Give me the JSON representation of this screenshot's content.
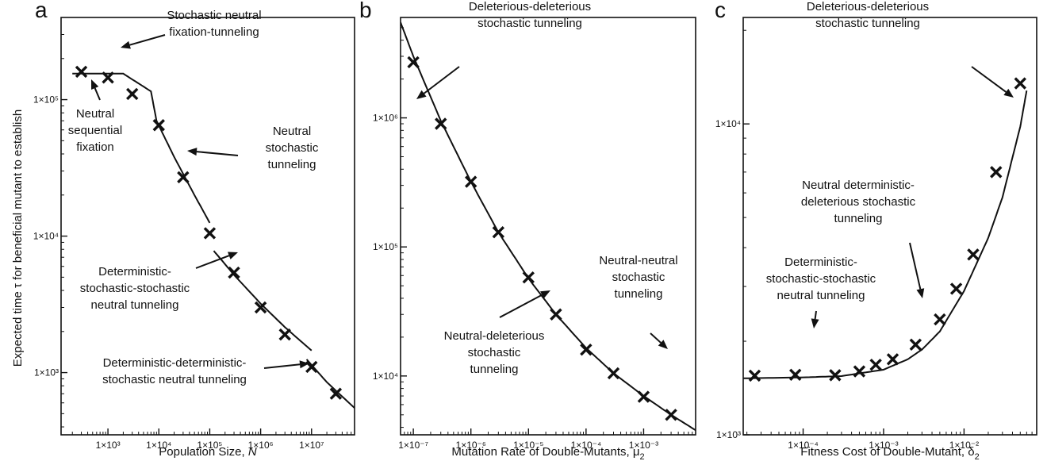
{
  "y_axis_label": "Expected time τ for beneficial mutant to establish",
  "chart_data": [
    {
      "panel": "a",
      "type": "line",
      "xlabel": "Population Size, N",
      "xscale": "log",
      "yscale": "log",
      "xlim": [
        120,
        70000000
      ],
      "ylim": [
        350,
        400000
      ],
      "xticks": [
        1000,
        10000,
        100000,
        1000000,
        10000000
      ],
      "xtick_labels": [
        "1×10³",
        "1×10⁴",
        "1×10⁵",
        "1×10⁶",
        "1×10⁷"
      ],
      "yticks": [
        1000,
        10000,
        100000
      ],
      "ytick_labels": [
        "1×10³",
        "1×10⁴",
        "1×10⁵"
      ],
      "markers": {
        "name": "simulation",
        "x": [
          300,
          1000,
          3000,
          10000,
          30000,
          100000,
          300000,
          1000000,
          3000000,
          10000000,
          30000000
        ],
        "y": [
          160000,
          145000,
          110000,
          65000,
          27000,
          10500,
          5400,
          3000,
          1900,
          1100,
          700
        ]
      },
      "curves": [
        {
          "name": "sequential-fixation",
          "x": [
            200,
            2000,
            7000,
            9000,
            20000,
            50000,
            100000
          ],
          "y": [
            155000,
            155000,
            115000,
            70000,
            38000,
            20000,
            12500
          ]
        },
        {
          "name": "deterministic-stochastic",
          "x": [
            120000,
            300000,
            1000000,
            3000000,
            10000000
          ],
          "y": [
            7800,
            5200,
            3200,
            2150,
            1450
          ]
        },
        {
          "name": "deterministic-deterministic",
          "x": [
            8000000,
            20000000,
            70000000
          ],
          "y": [
            1250,
            850,
            550
          ]
        }
      ],
      "annotations": [
        {
          "lines": [
            "Stochastic neutral",
            "fixation-tunneling"
          ]
        },
        {
          "lines": [
            "Neutral",
            "sequential",
            "fixation"
          ]
        },
        {
          "lines": [
            "Neutral",
            "stochastic",
            "tunneling"
          ]
        },
        {
          "lines": [
            "Deterministic-",
            "stochastic-stochastic",
            "neutral tunneling"
          ]
        },
        {
          "lines": [
            "Deterministic-deterministic-",
            "stochastic neutral tunneling"
          ]
        }
      ]
    },
    {
      "panel": "b",
      "type": "line",
      "xlabel": "Mutation Rate of Double-Mutants, μ2",
      "xscale": "log",
      "yscale": "log",
      "xlim": [
        6e-08,
        0.008
      ],
      "ylim": [
        3500,
        6000000
      ],
      "xticks": [
        1e-07,
        1e-06,
        1e-05,
        0.0001,
        0.001
      ],
      "xtick_labels": [
        "1×10⁻⁷",
        "1×10⁻⁶",
        "1×10⁻⁵",
        "1×10⁻⁴",
        "1×10⁻³"
      ],
      "yticks": [
        10000,
        100000,
        1000000
      ],
      "ytick_labels": [
        "1×10⁴",
        "1×10⁵",
        "1×10⁶"
      ],
      "markers": {
        "name": "simulation",
        "x": [
          1e-07,
          3e-07,
          1e-06,
          3e-06,
          1e-05,
          3e-05,
          0.0001,
          0.0003,
          0.001,
          0.003
        ],
        "y": [
          2700000,
          900000,
          320000,
          130000,
          58000,
          30000,
          16000,
          10500,
          6900,
          5000
        ]
      },
      "curves": [
        {
          "name": "theory",
          "x": [
            6e-08,
            1e-07,
            3e-07,
            1e-06,
            3e-06,
            1e-05,
            3e-05,
            0.0001,
            0.0003,
            0.001,
            0.003,
            0.008
          ],
          "y": [
            5500000,
            3000000,
            950000,
            320000,
            130000,
            57000,
            30000,
            16500,
            10500,
            7000,
            5000,
            3800
          ]
        }
      ],
      "annotations": [
        {
          "lines": [
            "Deleterious-deleterious",
            "stochastic tunneling"
          ]
        },
        {
          "lines": [
            "Neutral-neutral",
            "stochastic",
            "tunneling"
          ]
        },
        {
          "lines": [
            "Neutral-deleterious",
            "stochastic",
            "tunneling"
          ]
        }
      ]
    },
    {
      "panel": "c",
      "type": "line",
      "xlabel": "Fitness Cost of Double-Mutant, δ2",
      "xscale": "log",
      "yscale": "log",
      "xlim": [
        1.8e-05,
        0.08
      ],
      "ylim": [
        1000,
        22000
      ],
      "xticks": [
        0.0001,
        0.001,
        0.01
      ],
      "xtick_labels": [
        "1×10⁻⁴",
        "1×10⁻³",
        "1×10⁻²"
      ],
      "yticks": [
        1000,
        10000
      ],
      "ytick_labels": [
        "1×10³",
        "1×10⁴"
      ],
      "markers": {
        "name": "simulation",
        "x": [
          2.5e-05,
          8e-05,
          0.00025,
          0.0005,
          0.0008,
          0.0013,
          0.0025,
          0.005,
          0.008,
          0.013,
          0.025,
          0.05
        ],
        "y": [
          1550,
          1560,
          1555,
          1600,
          1680,
          1750,
          1950,
          2350,
          2950,
          3800,
          7000,
          13500
        ]
      },
      "curves": [
        {
          "name": "theory",
          "x": [
            1.8e-05,
            0.0001,
            0.0003,
            0.001,
            0.002,
            0.003,
            0.005,
            0.01,
            0.02,
            0.03,
            0.05,
            0.06
          ],
          "y": [
            1520,
            1530,
            1545,
            1620,
            1750,
            1880,
            2150,
            2900,
            4300,
            5800,
            9800,
            12800
          ]
        }
      ],
      "annotations": [
        {
          "lines": [
            "Deleterious-deleterious",
            "stochastic tunneling"
          ]
        },
        {
          "lines": [
            "Neutral deterministic-",
            "deleterious stochastic",
            "tunneling"
          ]
        },
        {
          "lines": [
            "Deterministic-",
            "stochastic-stochastic",
            "neutral tunneling"
          ]
        }
      ]
    }
  ]
}
